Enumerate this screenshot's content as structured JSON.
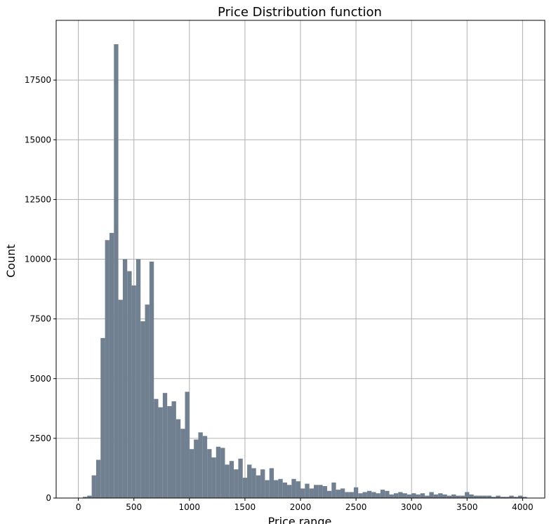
{
  "chart_data": {
    "type": "bar",
    "title": "Price Distribution function",
    "xlabel": "Price range",
    "ylabel": "Count",
    "xlim": [
      -200,
      4200
    ],
    "ylim": [
      0,
      20000
    ],
    "grid": true,
    "bar_color": "#708090",
    "grid_color": "#b0b0b0",
    "bin_width": 40,
    "bins_start": 40,
    "xticks": [
      0,
      500,
      1000,
      1500,
      2000,
      2500,
      3000,
      3500,
      4000
    ],
    "xtick_labels": [
      "0",
      "500",
      "1000",
      "1500",
      "2000",
      "2500",
      "3000",
      "3500",
      "4000"
    ],
    "yticks": [
      0,
      2500,
      5000,
      7500,
      10000,
      12500,
      15000,
      17500
    ],
    "ytick_labels": [
      "0",
      "2500",
      "5000",
      "7500",
      "10000",
      "12500",
      "15000",
      "17500"
    ],
    "values": [
      50,
      100,
      950,
      1600,
      6700,
      10800,
      11100,
      19000,
      8300,
      10000,
      9500,
      8900,
      10000,
      7400,
      8100,
      9900,
      4150,
      3800,
      4400,
      3850,
      4050,
      3300,
      2900,
      4450,
      2050,
      2450,
      2750,
      2600,
      2050,
      1700,
      2150,
      2100,
      1400,
      1550,
      1200,
      1650,
      850,
      1400,
      1250,
      950,
      1200,
      750,
      1250,
      750,
      800,
      650,
      550,
      800,
      700,
      400,
      600,
      400,
      550,
      550,
      500,
      300,
      650,
      350,
      400,
      250,
      250,
      450,
      200,
      250,
      300,
      250,
      200,
      350,
      300,
      150,
      200,
      250,
      200,
      150,
      200,
      150,
      200,
      100,
      250,
      150,
      200,
      150,
      100,
      150,
      100,
      100,
      250,
      150,
      100,
      100,
      100,
      100,
      50,
      100,
      50,
      50,
      100,
      50,
      100,
      50
    ]
  }
}
